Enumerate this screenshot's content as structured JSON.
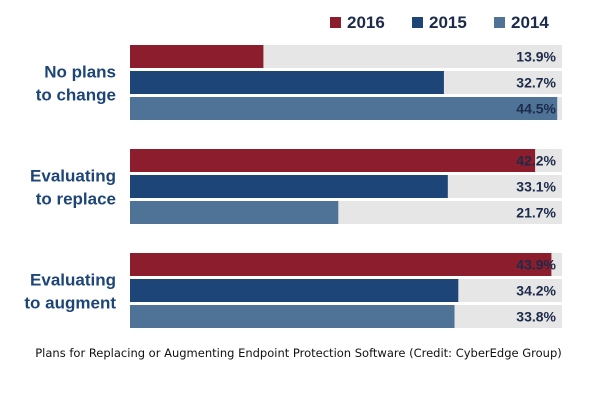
{
  "legend": [
    {
      "label": "2016",
      "color": "#8b1d2c"
    },
    {
      "label": "2015",
      "color": "#1d4577"
    },
    {
      "label": "2014",
      "color": "#4f7397"
    }
  ],
  "caption": "Plans for Replacing or Augmenting Endpoint Protection Software (Credit: CyberEdge Group)",
  "colors": {
    "track": "#e6e6e6",
    "label_text": "#1d4577",
    "value_text": "#1d2b4a"
  },
  "chart_data": {
    "type": "bar",
    "orientation": "horizontal",
    "categories": [
      [
        "No plans",
        "to change"
      ],
      [
        "Evaluating",
        "to replace"
      ],
      [
        "Evaluating",
        "to augment"
      ]
    ],
    "series": [
      {
        "name": "2016",
        "values": [
          13.9,
          42.2,
          43.9
        ],
        "labels": [
          "13.9%",
          "42.2%",
          "43.9%"
        ]
      },
      {
        "name": "2015",
        "values": [
          32.7,
          33.1,
          34.2
        ],
        "labels": [
          "32.7%",
          "33.1%",
          "34.2%"
        ]
      },
      {
        "name": "2014",
        "values": [
          44.5,
          21.7,
          33.8
        ],
        "labels": [
          "44.5%",
          "21.7%",
          "33.8%"
        ]
      }
    ],
    "xlim": [
      0,
      45
    ],
    "legend_position": "top-right",
    "grid": false
  }
}
